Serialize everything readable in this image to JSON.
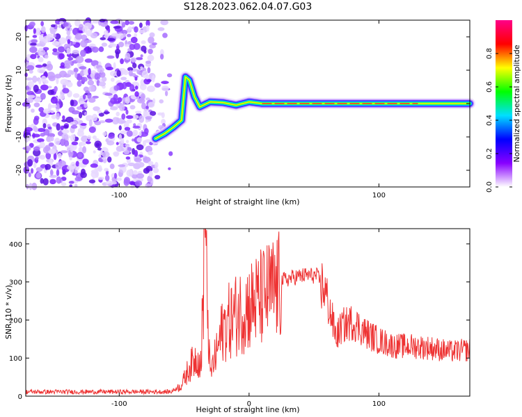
{
  "title": "S128.2023.062.04.07.G03",
  "chart_data": [
    {
      "type": "heatmap",
      "xlabel": "Height of straight line (km)",
      "ylabel": "Frequency (Hz)",
      "xlim": [
        -172,
        170
      ],
      "ylim": [
        -25,
        25
      ],
      "x_ticks": [
        -100,
        0,
        100
      ],
      "x_tick_labels": [
        "-100",
        "",
        "100"
      ],
      "y_ticks": [
        -20,
        -10,
        0,
        10,
        20
      ],
      "y_tick_labels": [
        "-20",
        "-10",
        "0",
        "10",
        "20"
      ],
      "colorbar": {
        "label": "Normalized spectral amplitude",
        "range": [
          0,
          1
        ],
        "ticks": [
          0.0,
          0.2,
          0.4,
          0.6,
          0.8
        ],
        "tick_labels": [
          "0.0",
          "0.2",
          "0.4",
          "0.6",
          "0.8"
        ],
        "colors": [
          "#ffffff",
          "#8800ff",
          "#0000ff",
          "#00e0ff",
          "#00ff00",
          "#ffff00",
          "#ff0000",
          "#ff0088"
        ]
      },
      "ridge": [
        {
          "x": -72,
          "y": -10.5
        },
        {
          "x": -65,
          "y": -9
        },
        {
          "x": -58,
          "y": -7
        },
        {
          "x": -52,
          "y": -5
        },
        {
          "x": -49,
          "y": 8
        },
        {
          "x": -46,
          "y": 7
        },
        {
          "x": -42,
          "y": 2
        },
        {
          "x": -38,
          "y": -1
        },
        {
          "x": -30,
          "y": 0.5
        },
        {
          "x": -20,
          "y": 0.3
        },
        {
          "x": -10,
          "y": -0.5
        },
        {
          "x": 0,
          "y": 0.5
        },
        {
          "x": 10,
          "y": 0
        },
        {
          "x": 170,
          "y": 0
        }
      ],
      "grid": false
    },
    {
      "type": "line",
      "xlabel": "Height of straight line (km)",
      "ylabel": "SNR (10 * v/v)",
      "xlim": [
        -172,
        170
      ],
      "ylim": [
        0,
        440
      ],
      "x_ticks": [
        -100,
        0,
        100
      ],
      "x_tick_labels": [
        "-100",
        "0",
        "100"
      ],
      "y_ticks": [
        0,
        100,
        200,
        300,
        400
      ],
      "y_tick_labels": [
        "0",
        "100",
        "200",
        "300",
        "400"
      ],
      "color": "#ee3333",
      "envelope": [
        {
          "x": -172,
          "y": 12
        },
        {
          "x": -60,
          "y": 12
        },
        {
          "x": -52,
          "y": 30
        },
        {
          "x": -46,
          "y": 80
        },
        {
          "x": -40,
          "y": 110
        },
        {
          "x": -37,
          "y": 90
        },
        {
          "x": -34,
          "y": 440
        },
        {
          "x": -30,
          "y": 60
        },
        {
          "x": -25,
          "y": 120
        },
        {
          "x": -20,
          "y": 190
        },
        {
          "x": -12,
          "y": 220
        },
        {
          "x": -5,
          "y": 240
        },
        {
          "x": 5,
          "y": 260
        },
        {
          "x": 15,
          "y": 285
        },
        {
          "x": 25,
          "y": 305
        },
        {
          "x": 35,
          "y": 315
        },
        {
          "x": 45,
          "y": 320
        },
        {
          "x": 52,
          "y": 318
        },
        {
          "x": 58,
          "y": 290
        },
        {
          "x": 63,
          "y": 220
        },
        {
          "x": 67,
          "y": 160
        },
        {
          "x": 72,
          "y": 190
        },
        {
          "x": 80,
          "y": 200
        },
        {
          "x": 90,
          "y": 170
        },
        {
          "x": 100,
          "y": 150
        },
        {
          "x": 112,
          "y": 135
        },
        {
          "x": 125,
          "y": 135
        },
        {
          "x": 140,
          "y": 130
        },
        {
          "x": 155,
          "y": 120
        },
        {
          "x": 170,
          "y": 125
        }
      ],
      "grid": false
    }
  ]
}
